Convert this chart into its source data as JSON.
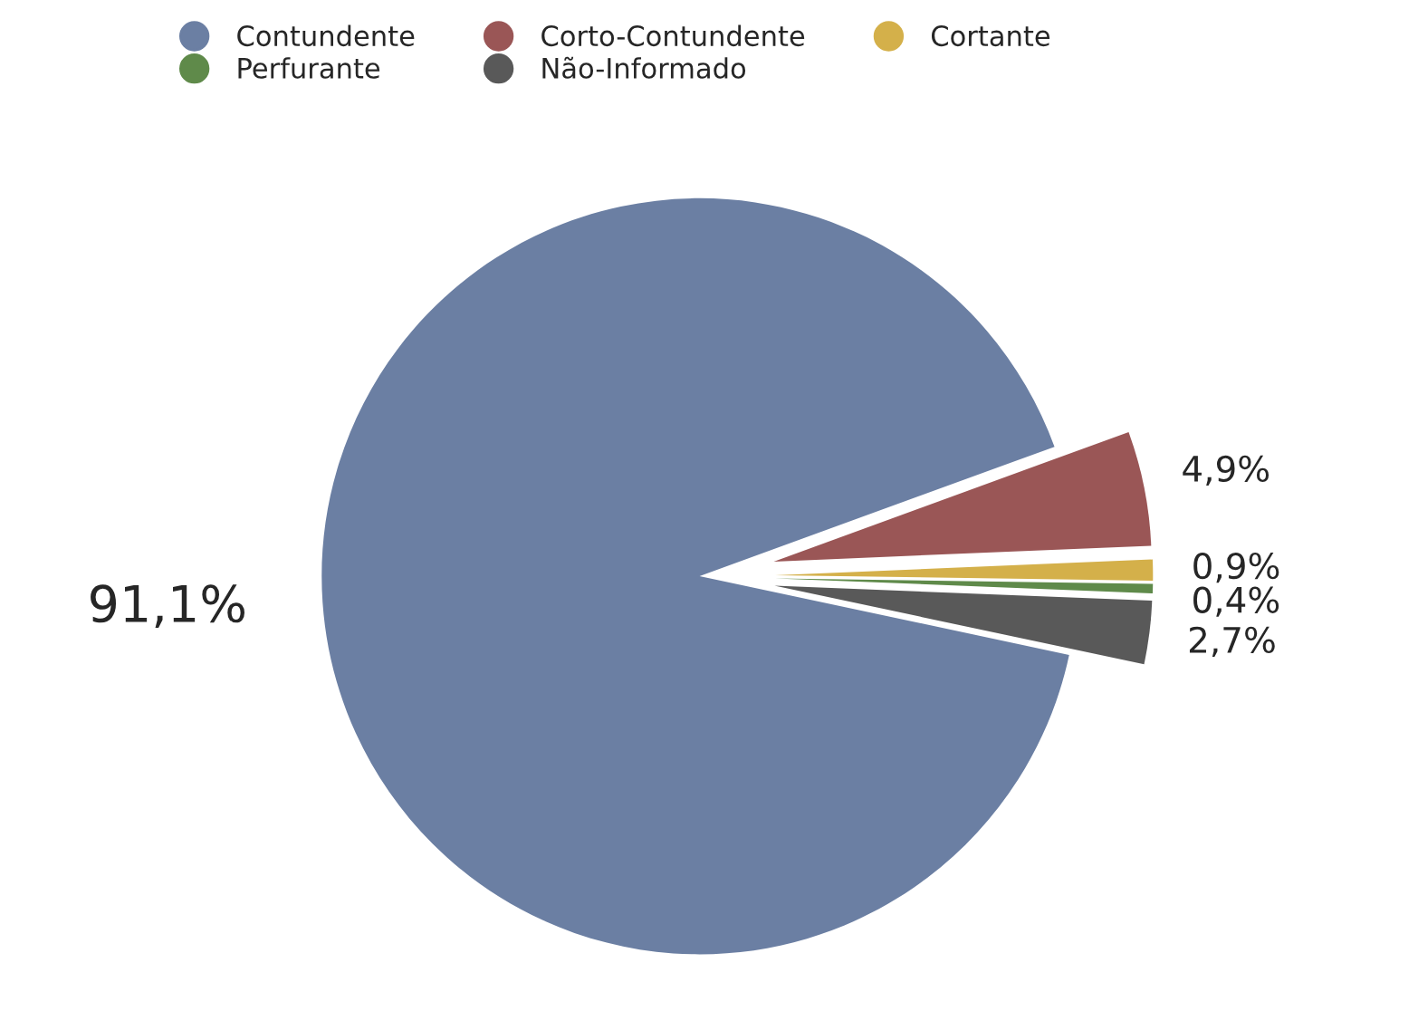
{
  "chart_data": {
    "type": "pie",
    "categories": [
      "Contundente",
      "Corto-Contundente",
      "Cortante",
      "Perfurante",
      "Não-Informado"
    ],
    "values": [
      91.1,
      4.9,
      0.9,
      0.4,
      2.7
    ],
    "value_labels": [
      "91,1%",
      "4,9%",
      "0,9%",
      "0,4%",
      "2,7%"
    ],
    "colors": [
      "#6b7fa3",
      "#9a5656",
      "#d4b04a",
      "#5f8a4a",
      "#595959"
    ],
    "legend": "top"
  }
}
